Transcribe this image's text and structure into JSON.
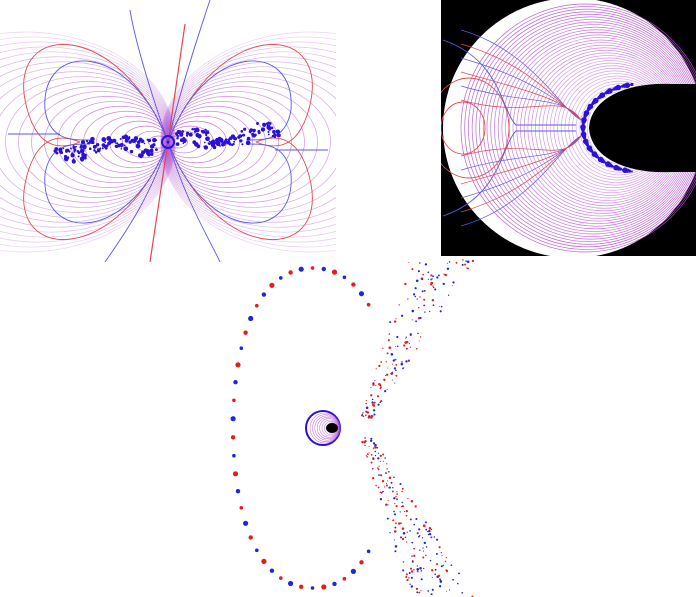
{
  "figure": {
    "panels": [
      {
        "id": "fatou-field-lines",
        "label": ""
      },
      {
        "id": "disk-model-field-lines",
        "label": ""
      },
      {
        "id": "point-orbit-plot",
        "label": ""
      }
    ]
  },
  "colors": {
    "background": "#ffffff",
    "red_lines": "#e34a4a",
    "blue_lines": "#5a5ae8",
    "purple_contours": "#b04fd0",
    "julia_set": "#2a10d8",
    "black_region": "#000000",
    "red_points": "#e81b1b",
    "blue_points": "#1b27e0"
  }
}
